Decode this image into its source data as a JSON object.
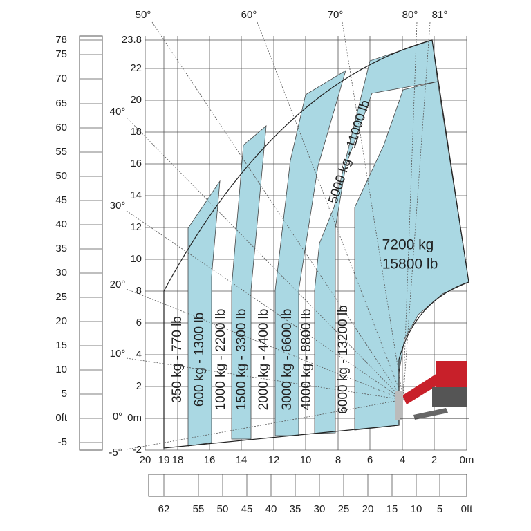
{
  "left_ft_axis": [
    "78",
    "75",
    "70",
    "65",
    "60",
    "55",
    "50",
    "45",
    "40",
    "35",
    "30",
    "25",
    "20",
    "15",
    "10",
    "5",
    "0ft",
    "-5"
  ],
  "left_m_axis": [
    "23.8",
    "22",
    "20",
    "18",
    "16",
    "14",
    "12",
    "10",
    "8",
    "6",
    "4",
    "2",
    "0m",
    "-2"
  ],
  "angles": [
    "50°",
    "60°",
    "70°",
    "80°",
    "81°",
    "40°",
    "30°",
    "20°",
    "10°",
    "0°",
    "-5°"
  ],
  "bottom_m_axis": [
    "20",
    "19",
    "18",
    "16",
    "14",
    "12",
    "10",
    "8",
    "6",
    "4",
    "2",
    "0m"
  ],
  "bottom_ft_axis": [
    "62",
    "55",
    "50",
    "45",
    "40",
    "35",
    "30",
    "25",
    "20",
    "15",
    "10",
    "5",
    "0ft"
  ],
  "zones": [
    "350 kg - 770 lb",
    "600 kg - 1300 lb",
    "1000 kg - 2200 lb",
    "1500 kg - 3300 lb",
    "2000 kg - 4400 lb",
    "3000 kg - 6600 lb",
    "4000 kg - 8800 lb",
    "6000 kg - 13200 lb",
    "5000 kg - 11000 lb"
  ],
  "max_zone": {
    "kg": "7200 kg",
    "lb": "15800 lb"
  }
}
